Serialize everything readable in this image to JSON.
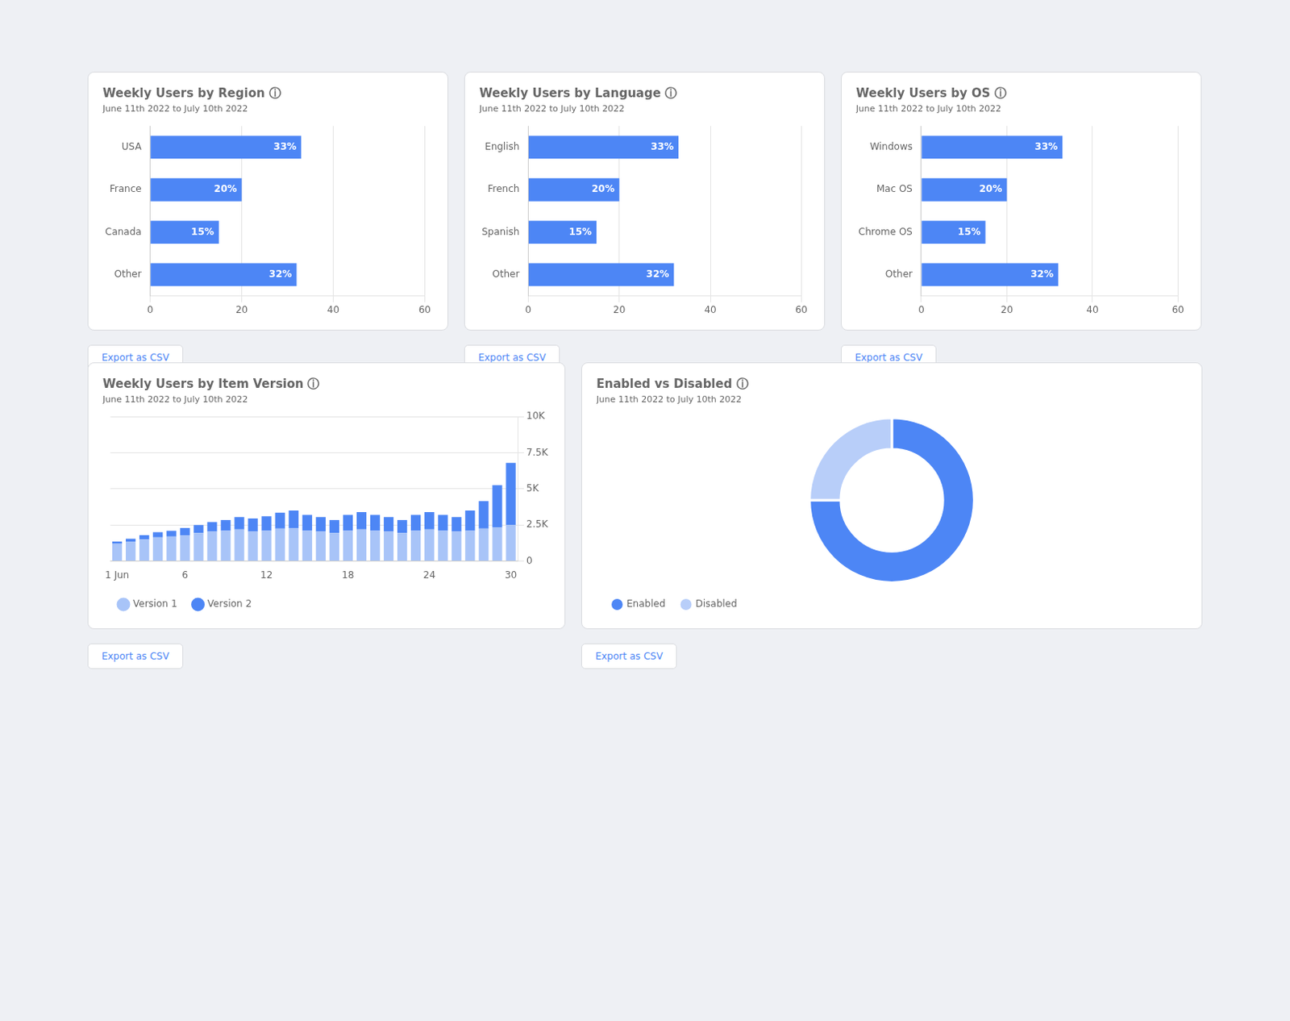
{
  "chart_data": [
    {
      "type": "bar",
      "orientation": "horizontal",
      "title": "Weekly Users by Region ⓘ",
      "subtitle": "June 11th 2022 to July 10th 2022",
      "categories": [
        "USA",
        "France",
        "Canada",
        "Other"
      ],
      "values": [
        33,
        20,
        15,
        32
      ],
      "value_labels": [
        "33%",
        "20%",
        "15%",
        "32%"
      ],
      "data_labels": true,
      "color": "#4d86f5",
      "xlim": [
        0,
        60
      ],
      "xticks": [
        0,
        20,
        40,
        60
      ],
      "grid": true,
      "annotations": [
        "Export as CSV"
      ]
    },
    {
      "type": "bar",
      "orientation": "horizontal",
      "title": "Weekly Users by Language ⓘ",
      "subtitle": "June 11th 2022 to July 10th 2022",
      "categories": [
        "English",
        "French",
        "Spanish",
        "Other"
      ],
      "values": [
        33,
        20,
        15,
        32
      ],
      "value_labels": [
        "33%",
        "20%",
        "15%",
        "32%"
      ],
      "data_labels": true,
      "color": "#4d86f5",
      "xlim": [
        0,
        60
      ],
      "xticks": [
        0,
        20,
        40,
        60
      ],
      "grid": true,
      "annotations": [
        "Export as CSV"
      ]
    },
    {
      "type": "bar",
      "orientation": "horizontal",
      "title": "Weekly Users by OS ⓘ",
      "subtitle": "June 11th 2022 to July 10th 2022",
      "categories": [
        "Windows",
        "Mac OS",
        "Chrome OS",
        "Other"
      ],
      "values": [
        33,
        20,
        15,
        32
      ],
      "value_labels": [
        "33%",
        "20%",
        "15%",
        "32%"
      ],
      "data_labels": true,
      "color": "#4d86f5",
      "xlim": [
        0,
        60
      ],
      "xticks": [
        0,
        20,
        40,
        60
      ],
      "grid": true,
      "annotations": [
        "Export as CSV"
      ]
    },
    {
      "type": "bar",
      "stacked": true,
      "title": "Weekly Users by Item Version ⓘ",
      "subtitle": "June 11th 2022 to July 10th 2022",
      "categories": [
        "1 Jun",
        null,
        null,
        null,
        null,
        "6",
        null,
        null,
        null,
        null,
        null,
        "12",
        null,
        null,
        null,
        null,
        null,
        "18",
        null,
        null,
        null,
        null,
        null,
        "24",
        null,
        null,
        null,
        null,
        null,
        "30"
      ],
      "series": [
        {
          "name": "Version 1",
          "color": "#a8c4f8",
          "values": [
            1200,
            1350,
            1500,
            1650,
            1700,
            1800,
            1950,
            2050,
            2100,
            2200,
            2050,
            2100,
            2250,
            2300,
            2100,
            2050,
            1950,
            2100,
            2200,
            2100,
            2050,
            1950,
            2100,
            2200,
            2100,
            2050,
            2100,
            2250,
            2350,
            2500
          ]
        },
        {
          "name": "Version 2",
          "color": "#4d86f5",
          "values": [
            150,
            200,
            300,
            350,
            400,
            500,
            550,
            650,
            750,
            850,
            900,
            1000,
            1100,
            1200,
            1100,
            1000,
            900,
            1100,
            1200,
            1100,
            1000,
            900,
            1100,
            1200,
            1100,
            1000,
            1400,
            1900,
            2900,
            4300
          ]
        }
      ],
      "ylim": [
        0,
        10000
      ],
      "yticks": [
        0,
        {
          "value": 2500,
          "label": "2.5K"
        },
        {
          "value": 5000,
          "label": "5K"
        },
        {
          "value": 7500,
          "label": "7.5K"
        },
        {
          "value": 10000,
          "label": "10K"
        }
      ],
      "grid": true,
      "legend": "bottom",
      "annotations": [
        "Export as CSV"
      ]
    },
    {
      "type": "doughnut",
      "title": "Enabled vs Disabled ⓘ",
      "subtitle": "June 11th 2022 to July 10th 2022",
      "categories": [
        "Enabled",
        "Disabled"
      ],
      "values": [
        75,
        25
      ],
      "colors": [
        "#4d86f5",
        "#b8cef9"
      ],
      "legend": "bottom",
      "annotations": [
        "Export as CSV"
      ]
    }
  ]
}
